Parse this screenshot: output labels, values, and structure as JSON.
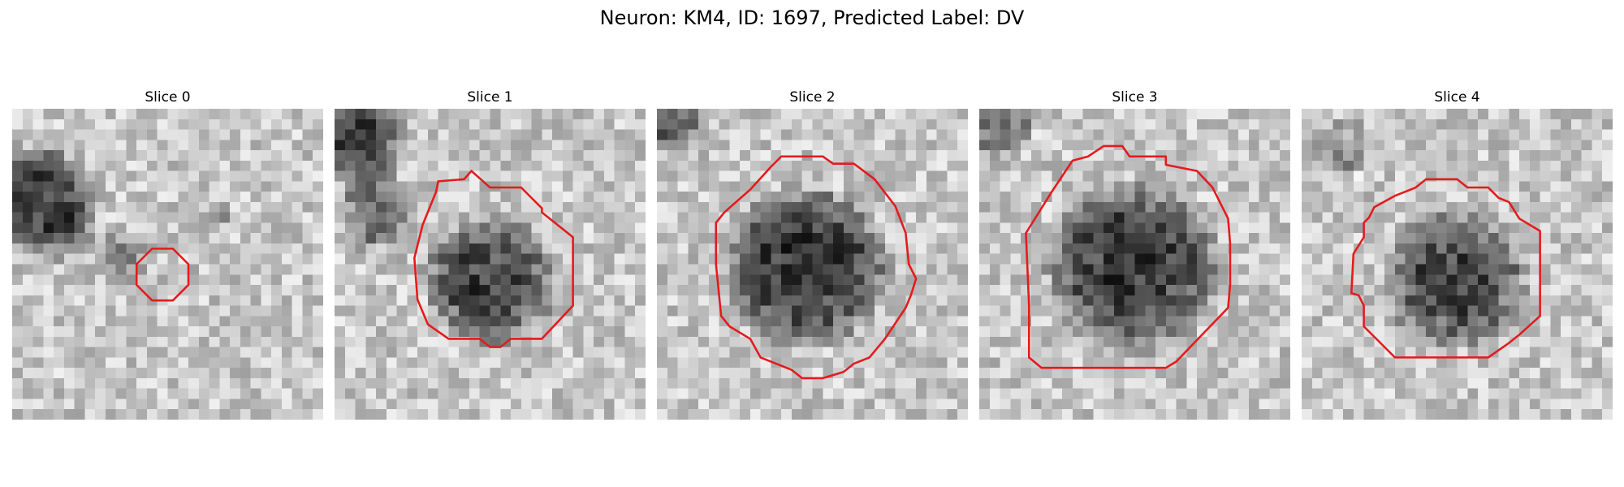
{
  "figure": {
    "suptitle": "Neuron: KM4, ID: 1697, Predicted Label: DV",
    "colors": {
      "outline": "#e41a1c",
      "colormap": "grayscale"
    },
    "panels": [
      {
        "title": "Slice 0"
      },
      {
        "title": "Slice 1"
      },
      {
        "title": "Slice 2"
      },
      {
        "title": "Slice 3"
      },
      {
        "title": "Slice 4"
      }
    ]
  }
}
